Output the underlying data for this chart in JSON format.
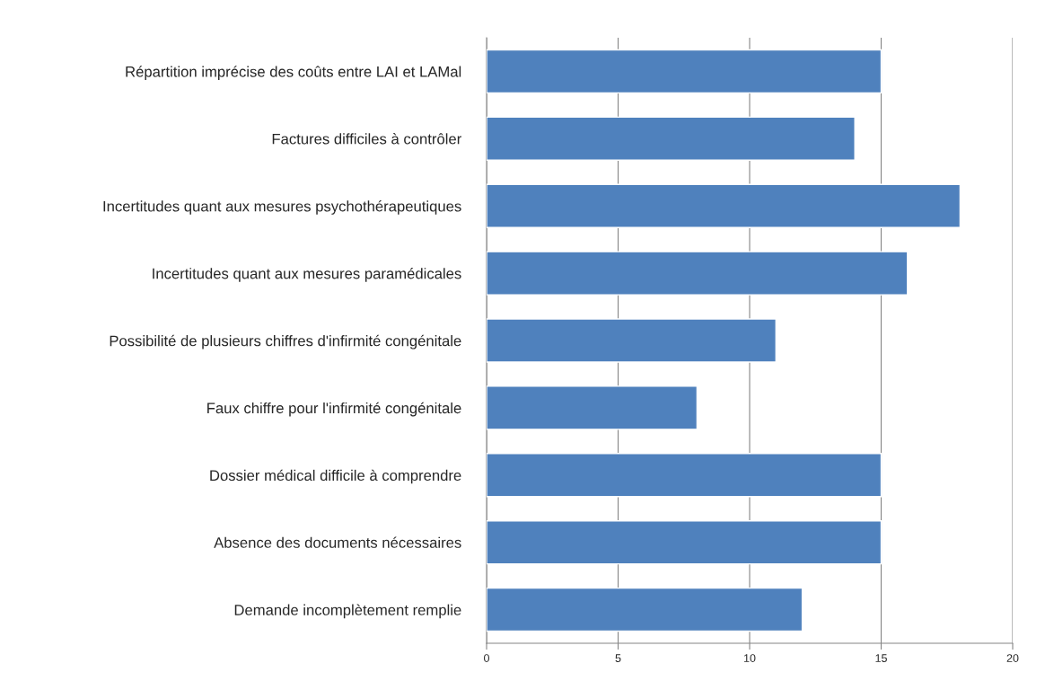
{
  "chart_data": {
    "type": "bar",
    "orientation": "horizontal",
    "categories": [
      "Répartition imprécise des coûts entre LAI et LAMal",
      "Factures difficiles à contrôler",
      "Incertitudes quant aux mesures psychothérapeutiques",
      "Incertitudes quant aux mesures paramédicales",
      "Possibilité de plusieurs chiffres d'infirmité congénitale",
      "Faux chiffre pour l'infirmité congénitale",
      "Dossier médical difficile à comprendre",
      "Absence des documents nécessaires",
      "Demande incomplètement remplie"
    ],
    "values": [
      15,
      14,
      18,
      16,
      11,
      8,
      15,
      15,
      12
    ],
    "color": "#4f81bd",
    "xlim": [
      0,
      20
    ],
    "xticks": [
      0,
      5,
      10,
      15,
      20
    ],
    "grid": "x",
    "legend": false
  }
}
